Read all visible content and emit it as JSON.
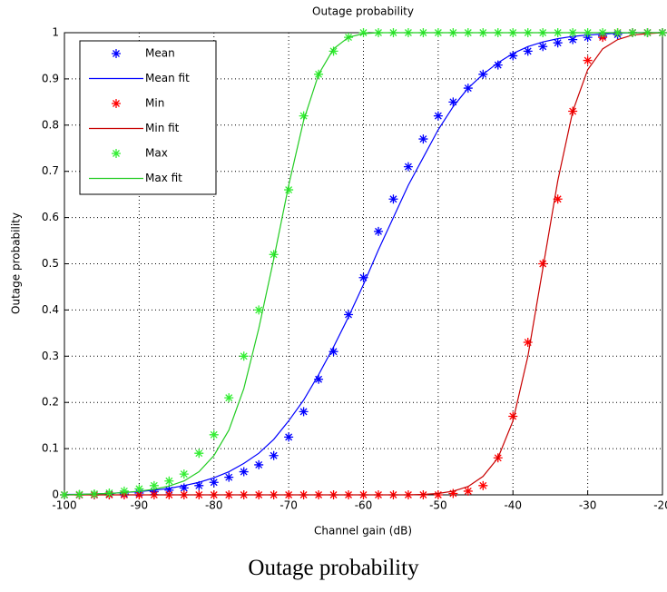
{
  "chart_data": {
    "type": "line",
    "title": "Outage probability",
    "x_label": "Channel gain (dB)",
    "y_label": "Outage probability",
    "x": [
      -100,
      -98,
      -96,
      -94,
      -92,
      -90,
      -88,
      -86,
      -84,
      -82,
      -80,
      -78,
      -76,
      -74,
      -72,
      -70,
      -68,
      -66,
      -64,
      -62,
      -60,
      -58,
      -56,
      -54,
      -52,
      -50,
      -48,
      -46,
      -44,
      -42,
      -40,
      -38,
      -36,
      -34,
      -32,
      -30,
      -28,
      -26,
      -24,
      -22,
      -20
    ],
    "series": [
      {
        "name": "Mean",
        "color": "#0000ff",
        "style": "marker",
        "values": [
          0,
          0,
          0,
          0.001,
          0.002,
          0.004,
          0.007,
          0.01,
          0.015,
          0.02,
          0.027,
          0.038,
          0.05,
          0.065,
          0.085,
          0.125,
          0.18,
          0.25,
          0.31,
          0.39,
          0.47,
          0.57,
          0.64,
          0.71,
          0.77,
          0.82,
          0.85,
          0.88,
          0.91,
          0.93,
          0.95,
          0.96,
          0.97,
          0.978,
          0.985,
          0.99,
          0.993,
          0.996,
          1,
          1,
          1
        ]
      },
      {
        "name": "Mean fit",
        "color": "#0000ff",
        "style": "line",
        "values": [
          0.001,
          0.001,
          0.002,
          0.003,
          0.005,
          0.007,
          0.01,
          0.014,
          0.02,
          0.027,
          0.037,
          0.05,
          0.068,
          0.09,
          0.12,
          0.16,
          0.205,
          0.26,
          0.32,
          0.385,
          0.455,
          0.53,
          0.6,
          0.67,
          0.73,
          0.79,
          0.84,
          0.88,
          0.91,
          0.935,
          0.955,
          0.97,
          0.98,
          0.987,
          0.992,
          0.995,
          0.997,
          0.999,
          1,
          1,
          1
        ]
      },
      {
        "name": "Min",
        "color": "#ff0000",
        "style": "marker",
        "values": [
          0,
          0,
          0,
          0,
          0,
          0,
          0,
          0,
          0,
          0,
          0,
          0,
          0,
          0,
          0,
          0,
          0,
          0,
          0,
          0,
          0,
          0,
          0,
          0,
          0,
          0,
          0.003,
          0.008,
          0.02,
          0.08,
          0.17,
          0.33,
          0.5,
          0.64,
          0.83,
          0.94,
          0.99,
          1,
          1,
          1,
          1
        ]
      },
      {
        "name": "Min fit",
        "color": "#c80000",
        "style": "line",
        "values": [
          0,
          0,
          0,
          0,
          0,
          0,
          0,
          0,
          0,
          0,
          0,
          0,
          0,
          0,
          0,
          0,
          0,
          0,
          0,
          0,
          0,
          0,
          0,
          0,
          0.001,
          0.003,
          0.008,
          0.018,
          0.04,
          0.08,
          0.16,
          0.3,
          0.49,
          0.68,
          0.83,
          0.92,
          0.965,
          0.985,
          0.995,
          0.998,
          1
        ]
      },
      {
        "name": "Max",
        "color": "#33ee33",
        "style": "marker",
        "values": [
          0,
          0.001,
          0.002,
          0.004,
          0.008,
          0.013,
          0.02,
          0.03,
          0.045,
          0.09,
          0.13,
          0.21,
          0.3,
          0.4,
          0.52,
          0.66,
          0.82,
          0.91,
          0.96,
          0.99,
          1,
          1,
          1,
          1,
          1,
          1,
          1,
          1,
          1,
          1,
          1,
          1,
          1,
          1,
          1,
          1,
          1,
          1,
          1,
          1,
          1
        ]
      },
      {
        "name": "Max fit",
        "color": "#22cc22",
        "style": "line",
        "values": [
          0,
          0.001,
          0.002,
          0.003,
          0.005,
          0.008,
          0.012,
          0.019,
          0.03,
          0.05,
          0.085,
          0.14,
          0.23,
          0.36,
          0.51,
          0.67,
          0.81,
          0.91,
          0.965,
          0.99,
          0.998,
          1,
          1,
          1,
          1,
          1,
          1,
          1,
          1,
          1,
          1,
          1,
          1,
          1,
          1,
          1,
          1,
          1,
          1,
          1,
          1
        ]
      }
    ],
    "xlim": [
      -100,
      -20
    ],
    "ylim": [
      0,
      1
    ],
    "xticks": [
      -100,
      -90,
      -80,
      -70,
      -60,
      -50,
      -40,
      -30,
      -20
    ],
    "yticks": [
      0,
      0.1,
      0.2,
      0.3,
      0.4,
      0.5,
      0.6,
      0.7,
      0.8,
      0.9,
      1
    ],
    "grid": true,
    "legend": "northwest"
  },
  "caption": "Outage probability"
}
